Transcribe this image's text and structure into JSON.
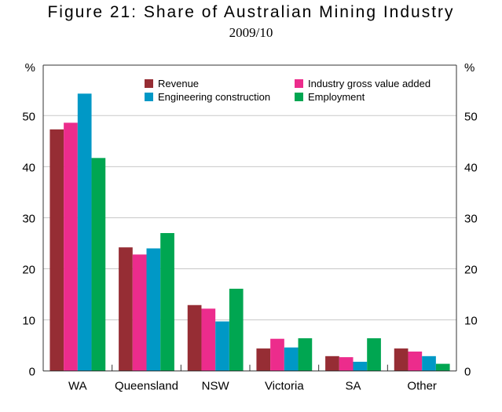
{
  "chart_data": {
    "type": "bar",
    "title": "Figure 21: Share of Australian Mining Industry",
    "subtitle": "2009/10",
    "ylabel_left": "%",
    "ylabel_right": "%",
    "ylim": [
      0,
      60
    ],
    "yticks": [
      0,
      10,
      20,
      30,
      40,
      50
    ],
    "grid": true,
    "legend_position": "top-center",
    "categories": [
      "WA",
      "Queensland",
      "NSW",
      "Victoria",
      "SA",
      "Other"
    ],
    "series": [
      {
        "name": "Revenue",
        "color": "#962D34",
        "values": [
          47.3,
          24.2,
          12.9,
          4.4,
          2.9,
          4.4
        ]
      },
      {
        "name": "Industry gross value added",
        "color": "#EC2C8C",
        "values": [
          48.6,
          22.8,
          12.2,
          6.3,
          2.7,
          3.8
        ]
      },
      {
        "name": "Engineering construction",
        "color": "#0098C6",
        "values": [
          54.3,
          24.0,
          9.7,
          4.6,
          1.8,
          2.9
        ]
      },
      {
        "name": "Employment",
        "color": "#00A651",
        "values": [
          41.7,
          27.0,
          16.1,
          6.4,
          6.4,
          1.4
        ]
      }
    ]
  }
}
